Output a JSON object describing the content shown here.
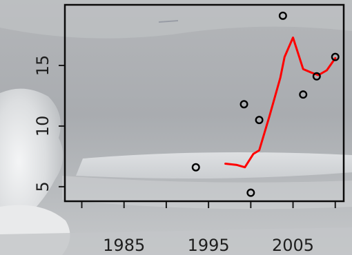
{
  "chart_data": {
    "type": "scatter",
    "title": "",
    "xlabel": "",
    "ylabel": "",
    "xlim": [
      1978,
      2011
    ],
    "ylim": [
      3.8,
      20
    ],
    "x_ticks": [
      1985,
      1995,
      2005
    ],
    "x_tick_labels": [
      "1985",
      "1995",
      "2005"
    ],
    "x_minor_ticks": [
      1980,
      1990,
      2000,
      2010
    ],
    "y_ticks": [
      5,
      10,
      15
    ],
    "y_tick_labels": [
      "5",
      "10",
      "15"
    ],
    "grid": false,
    "legend": "none",
    "series": [
      {
        "kind": "points",
        "marker": "open-circle",
        "color": "#000000",
        "points": [
          {
            "x": 1993.5,
            "y": 6.6
          },
          {
            "x": 1999.2,
            "y": 11.8
          },
          {
            "x": 2000.0,
            "y": 4.5
          },
          {
            "x": 2001.0,
            "y": 10.5
          },
          {
            "x": 2003.8,
            "y": 19.1
          },
          {
            "x": 2006.2,
            "y": 12.6
          },
          {
            "x": 2007.8,
            "y": 14.1
          },
          {
            "x": 2010.0,
            "y": 15.7
          }
        ]
      },
      {
        "kind": "line",
        "color": "#ff0000",
        "points": [
          {
            "x": 1997.0,
            "y": 6.9
          },
          {
            "x": 1998.3,
            "y": 6.8
          },
          {
            "x": 1999.3,
            "y": 6.6
          },
          {
            "x": 2000.3,
            "y": 7.7
          },
          {
            "x": 2001.0,
            "y": 8.0
          },
          {
            "x": 2002.2,
            "y": 10.8
          },
          {
            "x": 2003.5,
            "y": 14.0
          },
          {
            "x": 2004.0,
            "y": 15.7
          },
          {
            "x": 2005.0,
            "y": 17.3
          },
          {
            "x": 2005.6,
            "y": 16.0
          },
          {
            "x": 2006.2,
            "y": 14.7
          },
          {
            "x": 2007.2,
            "y": 14.4
          },
          {
            "x": 2008.0,
            "y": 14.2
          },
          {
            "x": 2009.0,
            "y": 14.6
          },
          {
            "x": 2010.0,
            "y": 15.6
          }
        ]
      }
    ]
  }
}
